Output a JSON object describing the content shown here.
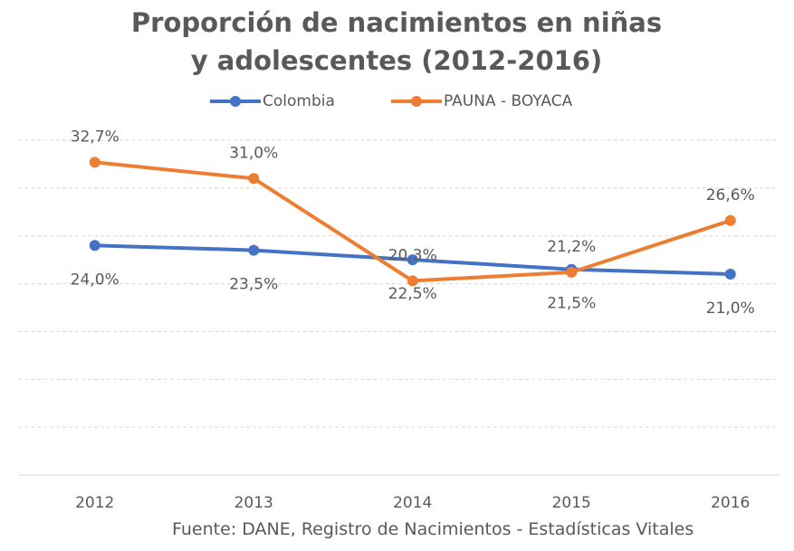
{
  "chart_data": {
    "type": "line",
    "title": "Proporción de nacimientos en niñas y adolescentes (2012-2016)",
    "source": "Fuente: DANE, Registro de Nacimientos - Estadísticas Vitales",
    "categories": [
      "2012",
      "2013",
      "2014",
      "2015",
      "2016"
    ],
    "series": [
      {
        "name": "Colombia",
        "color": "#4472c4",
        "values": [
          24.0,
          23.5,
          22.5,
          21.5,
          21.0
        ],
        "value_labels": [
          "24,0%",
          "23,5%",
          "22,5%",
          "21,5%",
          "21,0%"
        ]
      },
      {
        "name": "PAUNA - BOYACA",
        "color": "#ed7d31",
        "values": [
          32.7,
          31.0,
          20.3,
          21.2,
          26.6
        ],
        "value_labels": [
          "32,7%",
          "31,0%",
          "20,3%",
          "21,2%",
          "26,6%"
        ]
      }
    ],
    "ylim": [
      0,
      35
    ],
    "yticks": [
      0,
      5,
      10,
      15,
      20,
      25,
      30,
      35
    ],
    "grid": true,
    "legend": "top"
  }
}
